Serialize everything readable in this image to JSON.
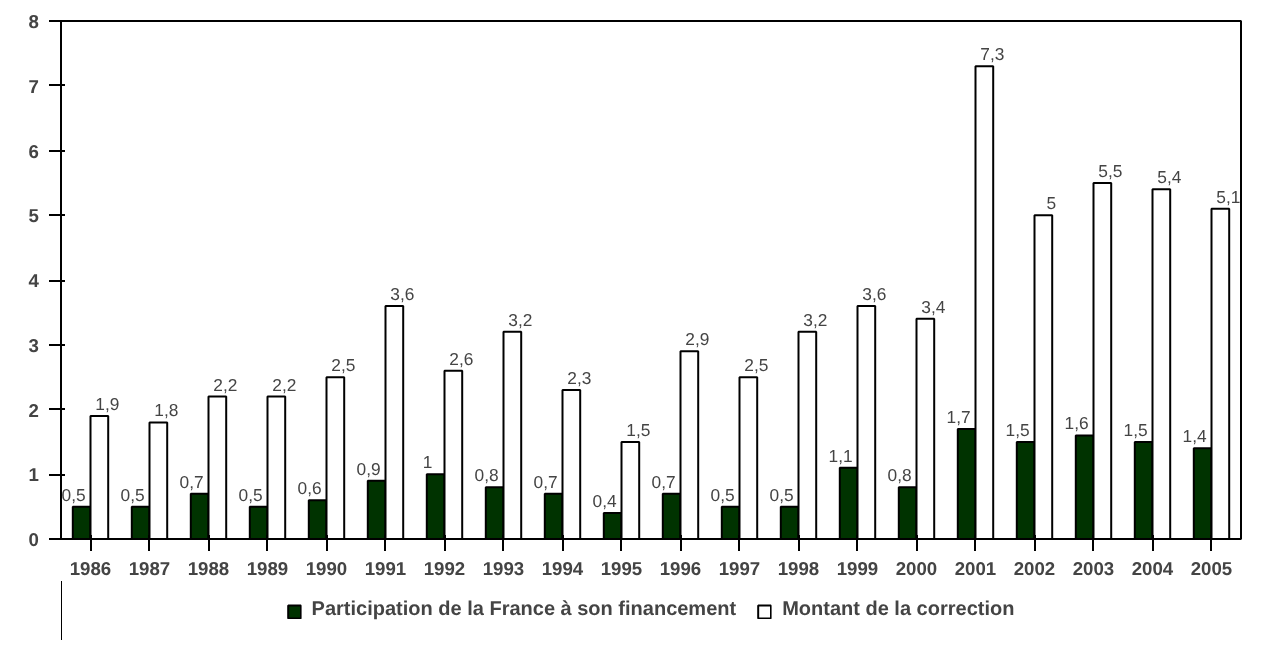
{
  "chart_data": {
    "type": "bar",
    "categories": [
      "1986",
      "1987",
      "1988",
      "1989",
      "1990",
      "1991",
      "1992",
      "1993",
      "1994",
      "1995",
      "1996",
      "1997",
      "1998",
      "1999",
      "2000",
      "2001",
      "2002",
      "2003",
      "2004",
      "2005"
    ],
    "series": [
      {
        "name": "Participation de la France à son financement",
        "color": "#003300",
        "values": [
          0.5,
          0.5,
          0.7,
          0.5,
          0.6,
          0.9,
          1,
          0.8,
          0.7,
          0.4,
          0.7,
          0.5,
          0.5,
          1.1,
          0.8,
          1.7,
          1.5,
          1.6,
          1.5,
          1.4
        ],
        "value_labels": [
          "0,5",
          "0,5",
          "0,7",
          "0,5",
          "0,6",
          "0,9",
          "1",
          "0,8",
          "0,7",
          "0,4",
          "0,7",
          "0,5",
          "0,5",
          "1,1",
          "0,8",
          "1,7",
          "1,5",
          "1,6",
          "1,5",
          "1,4"
        ]
      },
      {
        "name": "Montant de la correction",
        "color": "#ffffff",
        "values": [
          1.9,
          1.8,
          2.2,
          2.2,
          2.5,
          3.6,
          2.6,
          3.2,
          2.3,
          1.5,
          2.9,
          2.5,
          3.2,
          3.6,
          3.4,
          7.3,
          5,
          5.5,
          5.4,
          5.1
        ],
        "value_labels": [
          "1,9",
          "1,8",
          "2,2",
          "2,2",
          "2,5",
          "3,6",
          "2,6",
          "3,2",
          "2,3",
          "1,5",
          "2,9",
          "2,5",
          "3,2",
          "3,6",
          "3,4",
          "7,3",
          "5",
          "5,5",
          "5,4",
          "5,1"
        ]
      }
    ],
    "ylim": [
      0,
      8
    ],
    "yticks": [
      0,
      1,
      2,
      3,
      4,
      5,
      6,
      7,
      8
    ],
    "grid": false,
    "legend": "bottom"
  }
}
